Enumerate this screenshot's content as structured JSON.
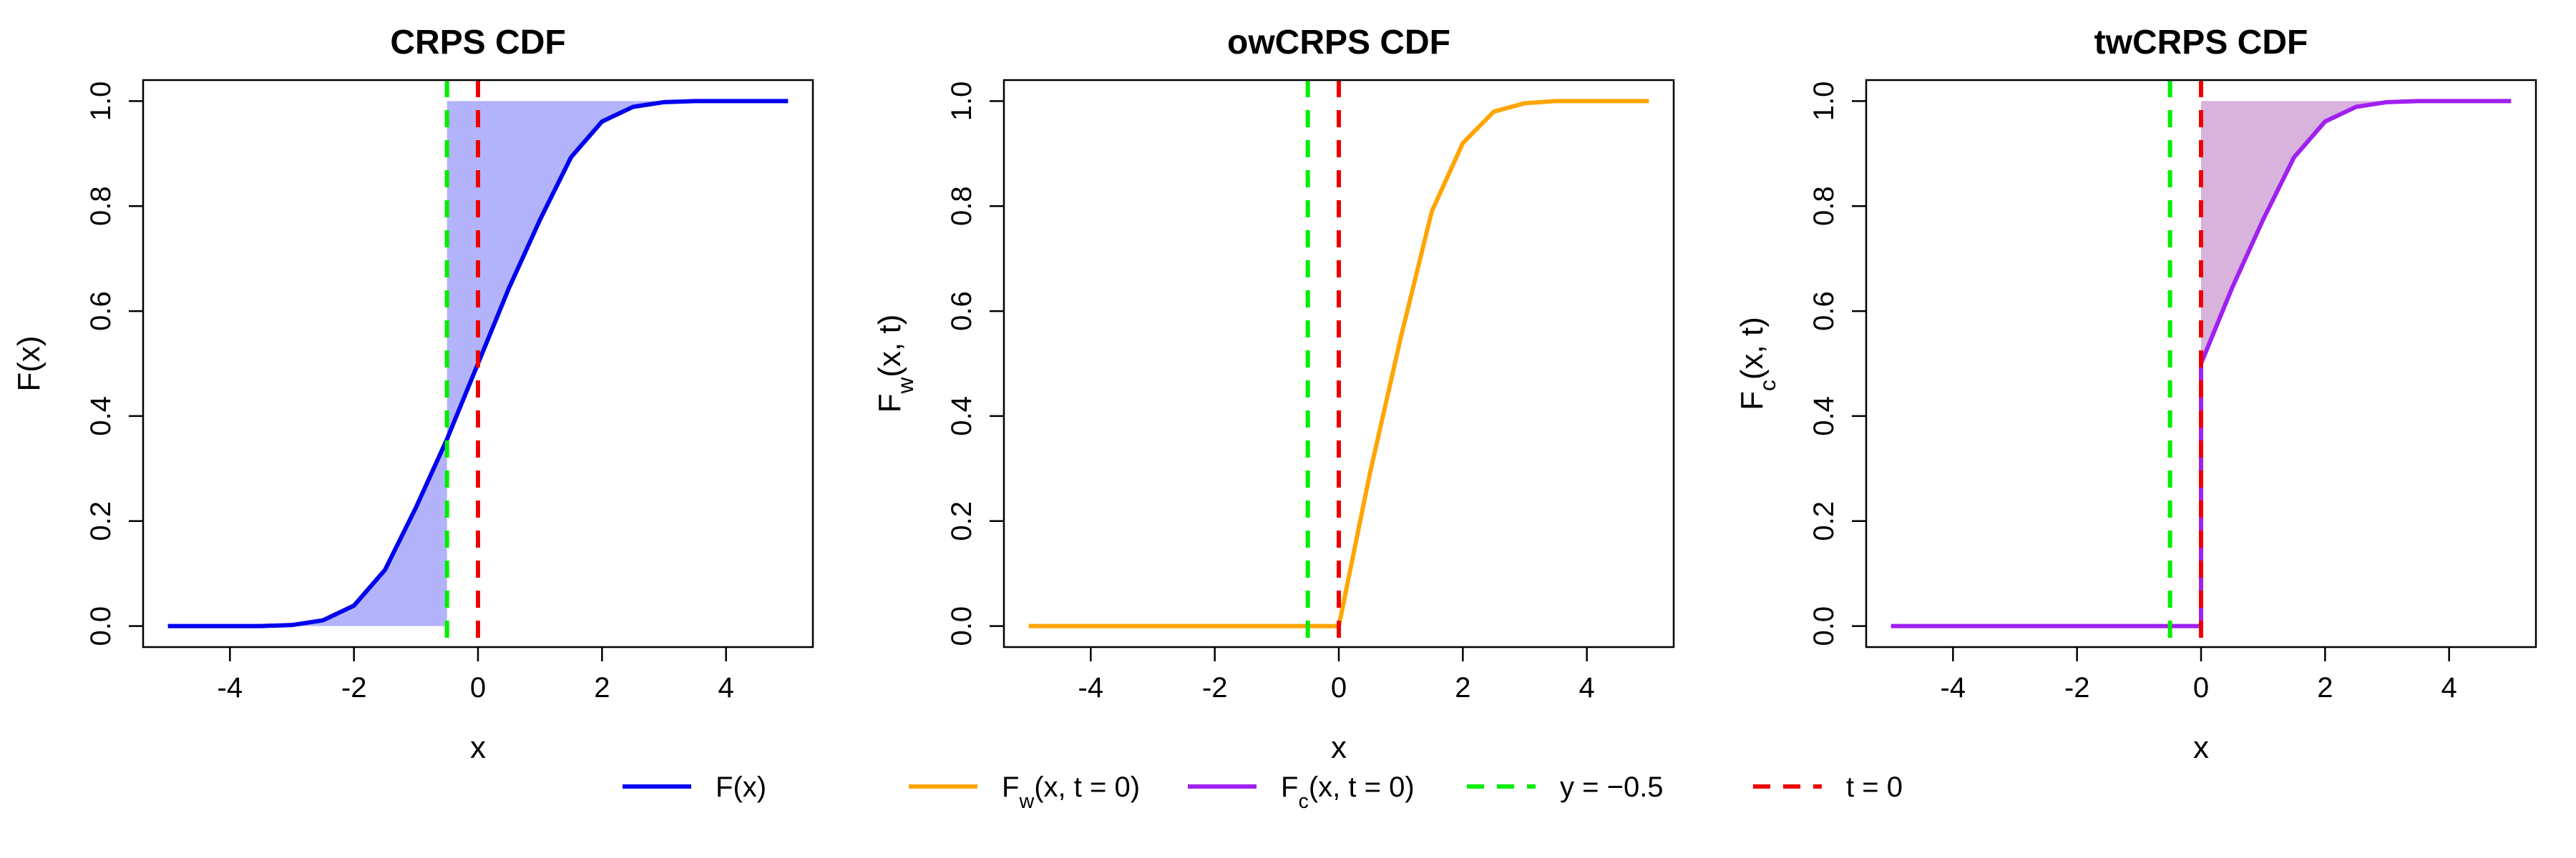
{
  "colors": {
    "cdf": "#0000ee",
    "cdf_fill": "#b3b3fb",
    "outcome_weighted": "#ffa500",
    "threshold_weighted": "#a020f0",
    "tw_fill": "#d8b3dc",
    "y_line": "#00ee00",
    "t_line": "#ee0000"
  },
  "legend": {
    "items": [
      {
        "key": "cdf",
        "main": "F",
        "sub": "",
        "rest": "(x)",
        "color": "#0000ee",
        "style": "solid"
      },
      {
        "key": "ow",
        "main": "F",
        "sub": "w",
        "rest": "(x, t = 0)",
        "color": "#ffa500",
        "style": "solid"
      },
      {
        "key": "tw",
        "main": "F",
        "sub": "c",
        "rest": "(x, t = 0)",
        "color": "#a020f0",
        "style": "solid"
      },
      {
        "key": "y",
        "main": "y = −0.5",
        "sub": "",
        "rest": "",
        "color": "#00ee00",
        "style": "dashed"
      },
      {
        "key": "t",
        "main": "t = 0",
        "sub": "",
        "rest": "",
        "color": "#ee0000",
        "style": "dashed"
      }
    ]
  },
  "chart_data": [
    {
      "type": "line",
      "title": "CRPS CDF",
      "xlabel": "x",
      "ylabel": {
        "main": "F",
        "sub": "",
        "rest": "(x)"
      },
      "xlim": [
        -5,
        5
      ],
      "ylim": [
        0,
        1
      ],
      "xticks": [
        -4,
        -2,
        0,
        2,
        4
      ],
      "yticks": [
        0.0,
        0.2,
        0.4,
        0.6,
        0.8,
        1.0
      ],
      "ytick_labels": [
        "0.0",
        "0.2",
        "0.4",
        "0.6",
        "0.8",
        "1.0"
      ],
      "series": [
        {
          "key": "cdf",
          "color": "#0000ee",
          "x": [
            -5,
            -4,
            -3.5,
            -3,
            -2.5,
            -2,
            -1.5,
            -1,
            -0.5,
            0,
            0.5,
            1,
            1.5,
            2,
            2.5,
            3,
            3.5,
            4,
            5
          ],
          "y": [
            0.0,
            0.0,
            0.0,
            0.002,
            0.011,
            0.039,
            0.107,
            0.226,
            0.356,
            0.5,
            0.644,
            0.774,
            0.893,
            0.961,
            0.989,
            0.998,
            1.0,
            1.0,
            1.0
          ]
        }
      ],
      "shade": {
        "color": "#b3b3fb",
        "regions": [
          {
            "x": [
              -5,
              -4,
              -3.5,
              -3,
              -2.5,
              -2,
              -1.5,
              -1,
              -0.5
            ],
            "lower": [
              0,
              0,
              0,
              0,
              0,
              0,
              0,
              0,
              0
            ],
            "upper": [
              0.0,
              0.0,
              0.0,
              0.002,
              0.011,
              0.039,
              0.107,
              0.226,
              0.356
            ]
          },
          {
            "x": [
              -0.5,
              0,
              0.5,
              1,
              1.5,
              2,
              2.5,
              3,
              3.5,
              4,
              5
            ],
            "lower": [
              0.356,
              0.5,
              0.644,
              0.774,
              0.893,
              0.961,
              0.989,
              0.998,
              1.0,
              1.0,
              1.0
            ],
            "upper": [
              1,
              1,
              1,
              1,
              1,
              1,
              1,
              1,
              1,
              1,
              1
            ]
          }
        ]
      },
      "vlines": [
        {
          "key": "y",
          "x": -0.5,
          "color": "#00ee00"
        },
        {
          "key": "t",
          "x": 0,
          "color": "#ee0000"
        }
      ]
    },
    {
      "type": "line",
      "title": "owCRPS CDF",
      "xlabel": "x",
      "ylabel": {
        "main": "F",
        "sub": "w",
        "rest": "(x, t)"
      },
      "xlim": [
        -5,
        5
      ],
      "ylim": [
        0,
        1
      ],
      "xticks": [
        -4,
        -2,
        0,
        2,
        4
      ],
      "yticks": [
        0.0,
        0.2,
        0.4,
        0.6,
        0.8,
        1.0
      ],
      "ytick_labels": [
        "0.0",
        "0.2",
        "0.4",
        "0.6",
        "0.8",
        "1.0"
      ],
      "series": [
        {
          "key": "ow",
          "color": "#ffa500",
          "x": [
            -5,
            -1,
            0,
            0.5,
            1,
            1.5,
            2,
            2.5,
            3,
            3.5,
            4,
            5
          ],
          "y": [
            0.0,
            0.0,
            0.0,
            0.29,
            0.55,
            0.79,
            0.92,
            0.98,
            0.996,
            1.0,
            1.0,
            1.0
          ]
        }
      ],
      "shade": null,
      "vlines": [
        {
          "key": "y",
          "x": -0.5,
          "color": "#00ee00"
        },
        {
          "key": "t",
          "x": 0,
          "color": "#ee0000"
        }
      ]
    },
    {
      "type": "line",
      "title": "twCRPS CDF",
      "xlabel": "x",
      "ylabel": {
        "main": "F",
        "sub": "c",
        "rest": "(x, t)"
      },
      "xlim": [
        -5,
        5
      ],
      "ylim": [
        0,
        1
      ],
      "xticks": [
        -4,
        -2,
        0,
        2,
        4
      ],
      "yticks": [
        0.0,
        0.2,
        0.4,
        0.6,
        0.8,
        1.0
      ],
      "ytick_labels": [
        "0.0",
        "0.2",
        "0.4",
        "0.6",
        "0.8",
        "1.0"
      ],
      "series": [
        {
          "key": "tw",
          "color": "#a020f0",
          "x": [
            -5,
            -1,
            0,
            0,
            0.5,
            1,
            1.5,
            2,
            2.5,
            3,
            3.5,
            4,
            5
          ],
          "y": [
            0.0,
            0.0,
            0.0,
            0.5,
            0.644,
            0.774,
            0.893,
            0.961,
            0.989,
            0.998,
            1.0,
            1.0,
            1.0
          ]
        }
      ],
      "shade": {
        "color": "#d8b3dc",
        "regions": [
          {
            "x": [
              0,
              0.5,
              1,
              1.5,
              2,
              2.5,
              3,
              3.5,
              4,
              5
            ],
            "lower": [
              0.5,
              0.644,
              0.774,
              0.893,
              0.961,
              0.989,
              0.998,
              1.0,
              1.0,
              1.0
            ],
            "upper": [
              1,
              1,
              1,
              1,
              1,
              1,
              1,
              1,
              1,
              1
            ]
          }
        ]
      },
      "vlines": [
        {
          "key": "y",
          "x": -0.5,
          "color": "#00ee00"
        },
        {
          "key": "t",
          "x": 0,
          "color": "#ee0000"
        }
      ]
    }
  ]
}
